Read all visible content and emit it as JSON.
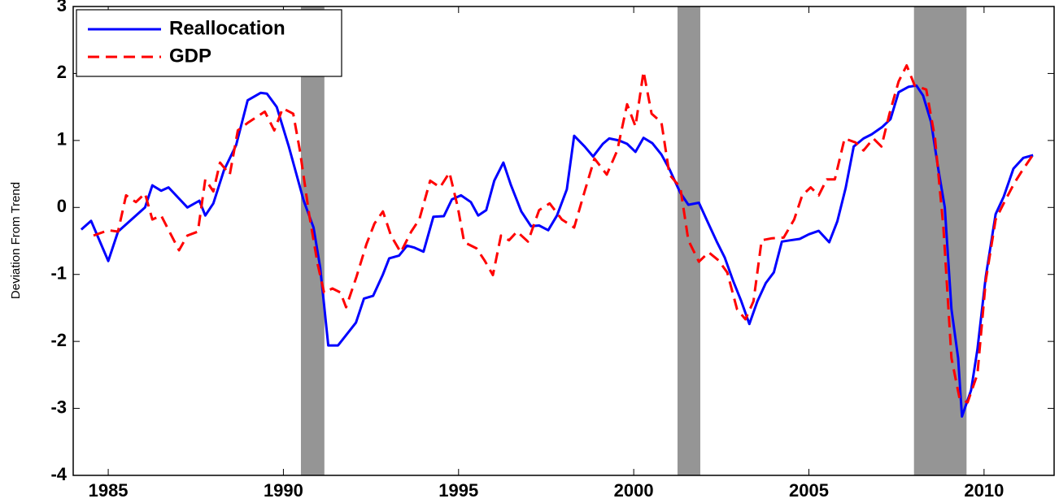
{
  "chart_data": {
    "type": "line",
    "y_label": "Deviation From Trend",
    "xlim": [
      1984,
      2012
    ],
    "xticks": [
      1985,
      1990,
      1995,
      2000,
      2005,
      2010
    ],
    "ylim": [
      -4,
      3
    ],
    "yticks": [
      -4,
      -3,
      -2,
      -1,
      0,
      1,
      2,
      3
    ],
    "legend": "upper-left",
    "shaded_periods": [
      [
        1990.5,
        1991.17
      ],
      [
        2001.25,
        2001.9
      ],
      [
        2008.0,
        2009.5
      ]
    ],
    "shade_color": "#959595",
    "series": [
      {
        "name": "Reallocation",
        "color": "#0000ff",
        "line_style": "solid",
        "x": [
          1984.23,
          1984.51,
          1985.0,
          1985.28,
          1986.05,
          1986.26,
          1986.51,
          1986.72,
          1987.26,
          1987.6,
          1987.77,
          1988.0,
          1988.3,
          1988.65,
          1988.98,
          1989.35,
          1989.53,
          1989.81,
          1990.16,
          1990.58,
          1990.86,
          1991.05,
          1991.28,
          1991.56,
          1992.07,
          1992.3,
          1992.56,
          1992.84,
          1993.02,
          1993.3,
          1993.53,
          1993.74,
          1994.0,
          1994.28,
          1994.58,
          1994.81,
          1995.07,
          1995.35,
          1995.56,
          1995.79,
          1996.02,
          1996.28,
          1996.49,
          1996.79,
          1997.07,
          1997.3,
          1997.56,
          1997.81,
          1998.09,
          1998.3,
          1998.6,
          1998.84,
          1999.12,
          1999.3,
          1999.58,
          1999.81,
          2000.05,
          2000.28,
          2000.53,
          2000.79,
          2001.02,
          2001.33,
          2001.56,
          2001.86,
          2002.14,
          2002.37,
          2002.6,
          2002.84,
          2003.07,
          2003.3,
          2003.53,
          2003.77,
          2004.0,
          2004.23,
          2004.47,
          2004.74,
          2005.0,
          2005.28,
          2005.58,
          2005.81,
          2006.05,
          2006.28,
          2006.56,
          2006.79,
          2007.09,
          2007.33,
          2007.56,
          2007.84,
          2008.07,
          2008.26,
          2008.49,
          2008.7,
          2008.88,
          2009.07,
          2009.26,
          2009.37,
          2009.63,
          2009.81,
          2010.05,
          2010.33,
          2010.56,
          2010.84,
          2011.12,
          2011.4
        ],
        "values": [
          -0.33,
          -0.2,
          -0.8,
          -0.36,
          0.0,
          0.33,
          0.25,
          0.3,
          0.0,
          0.1,
          -0.12,
          0.06,
          0.55,
          0.93,
          1.6,
          1.71,
          1.7,
          1.5,
          0.9,
          0.1,
          -0.3,
          -0.9,
          -2.06,
          -2.06,
          -1.72,
          -1.36,
          -1.32,
          -1.0,
          -0.76,
          -0.72,
          -0.57,
          -0.6,
          -0.66,
          -0.14,
          -0.13,
          0.12,
          0.18,
          0.08,
          -0.12,
          -0.04,
          0.4,
          0.67,
          0.34,
          -0.06,
          -0.28,
          -0.27,
          -0.34,
          -0.12,
          0.27,
          1.07,
          0.91,
          0.76,
          0.95,
          1.03,
          1.0,
          0.95,
          0.83,
          1.04,
          0.96,
          0.79,
          0.57,
          0.22,
          0.04,
          0.07,
          -0.25,
          -0.51,
          -0.75,
          -1.1,
          -1.4,
          -1.74,
          -1.4,
          -1.13,
          -0.97,
          -0.51,
          -0.49,
          -0.47,
          -0.4,
          -0.35,
          -0.52,
          -0.21,
          0.29,
          0.91,
          1.03,
          1.09,
          1.2,
          1.32,
          1.72,
          1.8,
          1.82,
          1.67,
          1.27,
          0.55,
          0.0,
          -1.52,
          -2.25,
          -3.12,
          -2.73,
          -2.12,
          -1.03,
          -0.1,
          0.16,
          0.58,
          0.74,
          0.78
        ]
      },
      {
        "name": "GDP",
        "color": "#ff0000",
        "line_style": "dashed",
        "x": [
          1984.58,
          1985.0,
          1985.28,
          1985.51,
          1985.79,
          1986.05,
          1986.26,
          1986.51,
          1987.02,
          1987.26,
          1987.56,
          1987.77,
          1988.0,
          1988.19,
          1988.47,
          1988.7,
          1989.0,
          1989.47,
          1989.74,
          1989.98,
          1990.28,
          1990.47,
          1990.74,
          1990.98,
          1991.16,
          1991.4,
          1991.63,
          1991.79,
          1992.09,
          1992.37,
          1992.6,
          1992.84,
          1993.07,
          1993.35,
          1993.65,
          1993.88,
          1994.19,
          1994.47,
          1994.74,
          1994.98,
          1995.16,
          1995.51,
          1995.74,
          1995.98,
          1996.21,
          1996.44,
          1996.67,
          1996.98,
          1997.3,
          1997.6,
          1997.95,
          1998.3,
          1998.6,
          1998.88,
          1999.23,
          1999.53,
          1999.81,
          2000.05,
          2000.28,
          2000.51,
          2000.79,
          2001.02,
          2001.33,
          2001.56,
          2001.86,
          2002.14,
          2002.42,
          2002.67,
          2002.95,
          2003.19,
          2003.42,
          2003.65,
          2003.95,
          2004.28,
          2004.58,
          2004.81,
          2005.05,
          2005.28,
          2005.51,
          2005.74,
          2006.02,
          2006.33,
          2006.56,
          2006.84,
          2007.07,
          2007.3,
          2007.56,
          2007.79,
          2008.02,
          2008.35,
          2008.6,
          2008.84,
          2009.07,
          2009.3,
          2009.53,
          2009.81,
          2010.05,
          2010.33,
          2010.56,
          2010.86,
          2011.09,
          2011.4
        ],
        "values": [
          -0.42,
          -0.34,
          -0.36,
          0.18,
          0.08,
          0.21,
          -0.18,
          -0.12,
          -0.64,
          -0.42,
          -0.36,
          0.42,
          0.24,
          0.67,
          0.49,
          1.15,
          1.27,
          1.43,
          1.15,
          1.48,
          1.4,
          0.85,
          -0.12,
          -0.85,
          -1.27,
          -1.21,
          -1.27,
          -1.49,
          -1.03,
          -0.55,
          -0.24,
          -0.06,
          -0.42,
          -0.67,
          -0.36,
          -0.18,
          0.4,
          0.3,
          0.52,
          0.0,
          -0.52,
          -0.61,
          -0.79,
          -1.01,
          -0.42,
          -0.49,
          -0.36,
          -0.51,
          -0.04,
          0.06,
          -0.18,
          -0.3,
          0.24,
          0.73,
          0.49,
          0.85,
          1.54,
          1.21,
          2.03,
          1.4,
          1.27,
          0.49,
          0.3,
          -0.49,
          -0.81,
          -0.67,
          -0.79,
          -0.97,
          -1.52,
          -1.67,
          -1.4,
          -0.49,
          -0.46,
          -0.45,
          -0.18,
          0.18,
          0.3,
          0.18,
          0.42,
          0.42,
          1.03,
          0.97,
          0.85,
          1.03,
          0.91,
          1.4,
          1.88,
          2.12,
          1.82,
          1.76,
          1.03,
          -0.3,
          -2.25,
          -2.85,
          -2.91,
          -2.49,
          -1.09,
          -0.18,
          0.06,
          0.36,
          0.55,
          0.79
        ]
      }
    ]
  }
}
